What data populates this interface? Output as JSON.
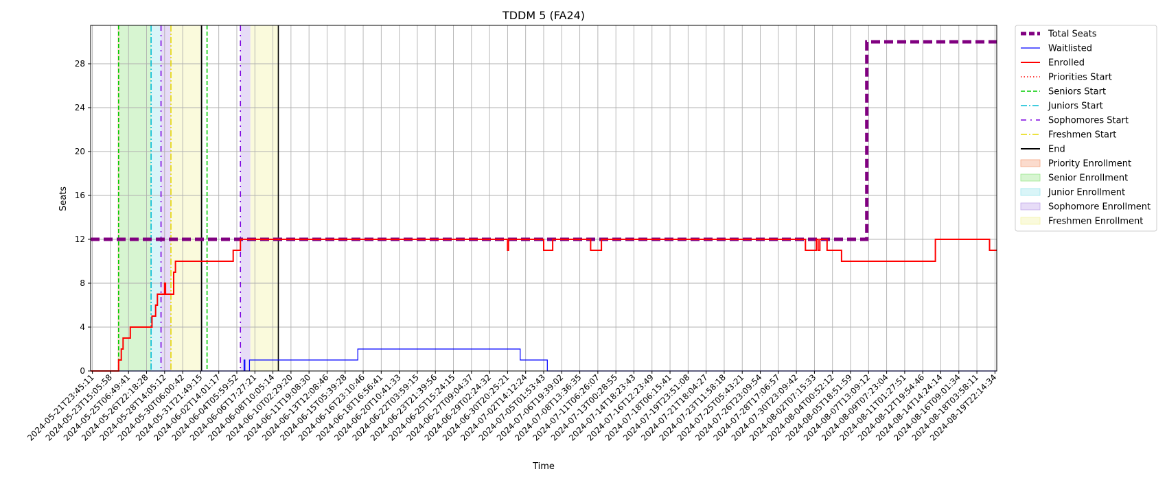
{
  "chart_data": {
    "type": "line",
    "title": "TDDM 5 (FA24)",
    "xlabel": "Time",
    "ylabel": "Seats",
    "ylim": [
      0,
      31.5
    ],
    "yticks": [
      0,
      4,
      8,
      12,
      16,
      20,
      24,
      28
    ],
    "grid": true,
    "legend_position": "outside-right-top",
    "x_tick_labels": [
      "2024-05-21T23:45:11",
      "2024-05-23T15:05:58",
      "2024-05-25T06:49:41",
      "2024-05-26T22:18:28",
      "2024-05-28T14:05:12",
      "2024-05-30T06:00:42",
      "2024-05-31T21:49:15",
      "2024-06-02T14:01:17",
      "2024-06-04T05:59:52",
      "2024-06-06T17:27:21",
      "2024-06-08T10:05:14",
      "2024-06-10T02:29:20",
      "2024-06-11T19:08:30",
      "2024-06-13T12:08:46",
      "2024-06-15T05:39:28",
      "2024-06-16T23:10:46",
      "2024-06-18T16:56:41",
      "2024-06-20T10:41:33",
      "2024-06-22T03:59:15",
      "2024-06-23T21:39:56",
      "2024-06-25T15:24:15",
      "2024-06-27T09:04:37",
      "2024-06-29T02:24:32",
      "2024-06-30T20:25:21",
      "2024-07-02T14:12:24",
      "2024-07-05T01:53:43",
      "2024-07-06T19:39:02",
      "2024-07-08T13:36:35",
      "2024-07-11T06:26:07",
      "2024-07-13T00:28:55",
      "2024-07-14T18:23:43",
      "2024-07-16T12:23:49",
      "2024-07-18T06:15:41",
      "2024-07-19T23:51:08",
      "2024-07-21T18:04:27",
      "2024-07-23T11:58:18",
      "2024-07-25T05:43:21",
      "2024-07-26T23:09:54",
      "2024-07-28T17:06:57",
      "2024-07-30T23:09:42",
      "2024-08-02T07:15:33",
      "2024-08-04T00:52:12",
      "2024-08-05T18:51:59",
      "2024-08-07T13:09:12",
      "2024-08-09T07:23:04",
      "2024-08-11T01:27:51",
      "2024-08-12T19:54:46",
      "2024-08-14T14:24:14",
      "2024-08-16T09:01:34",
      "2024-08-18T03:58:11",
      "2024-08-19T22:14:34"
    ],
    "x_domain": [
      -0.1,
      50.1
    ],
    "series": [
      {
        "name": "Total Seats",
        "color": "#800080",
        "style": "dashed-thick",
        "points": [
          [
            -0.1,
            12
          ],
          [
            42.9,
            12
          ],
          [
            42.9,
            30
          ],
          [
            50.1,
            30
          ]
        ]
      },
      {
        "name": "Waitlisted",
        "color": "#0000ff",
        "style": "solid-thin",
        "points": [
          [
            -0.1,
            0
          ],
          [
            8.4,
            0
          ],
          [
            8.4,
            1
          ],
          [
            8.45,
            1
          ],
          [
            8.45,
            0
          ],
          [
            8.7,
            0
          ],
          [
            8.7,
            1
          ],
          [
            14.7,
            1
          ],
          [
            14.7,
            2
          ],
          [
            23.7,
            2
          ],
          [
            23.7,
            1
          ],
          [
            25.2,
            1
          ],
          [
            25.2,
            0
          ],
          [
            50.1,
            0
          ]
        ]
      },
      {
        "name": "Enrolled",
        "color": "#ff0000",
        "style": "solid",
        "points": [
          [
            -0.1,
            0
          ],
          [
            1.45,
            0
          ],
          [
            1.45,
            1
          ],
          [
            1.6,
            1
          ],
          [
            1.6,
            2
          ],
          [
            1.7,
            2
          ],
          [
            1.7,
            3
          ],
          [
            2.1,
            3
          ],
          [
            2.1,
            4
          ],
          [
            3.3,
            4
          ],
          [
            3.3,
            5
          ],
          [
            3.5,
            5
          ],
          [
            3.5,
            6
          ],
          [
            3.6,
            6
          ],
          [
            3.6,
            7
          ],
          [
            4.0,
            7
          ],
          [
            4.0,
            8
          ],
          [
            4.05,
            8
          ],
          [
            4.05,
            7
          ],
          [
            4.5,
            7
          ],
          [
            4.5,
            9
          ],
          [
            4.6,
            9
          ],
          [
            4.6,
            10
          ],
          [
            7.8,
            10
          ],
          [
            7.8,
            11
          ],
          [
            8.2,
            11
          ],
          [
            8.2,
            12
          ],
          [
            23.0,
            12
          ],
          [
            23.0,
            11
          ],
          [
            23.05,
            11
          ],
          [
            23.05,
            12
          ],
          [
            25.0,
            12
          ],
          [
            25.0,
            11
          ],
          [
            25.5,
            11
          ],
          [
            25.5,
            12
          ],
          [
            27.6,
            12
          ],
          [
            27.6,
            11
          ],
          [
            28.2,
            11
          ],
          [
            28.2,
            12
          ],
          [
            39.5,
            12
          ],
          [
            39.5,
            11
          ],
          [
            40.1,
            11
          ],
          [
            40.1,
            12
          ],
          [
            40.2,
            12
          ],
          [
            40.2,
            11
          ],
          [
            40.3,
            11
          ],
          [
            40.3,
            12
          ],
          [
            40.7,
            12
          ],
          [
            40.7,
            11
          ],
          [
            41.5,
            11
          ],
          [
            41.5,
            10
          ],
          [
            46.7,
            10
          ],
          [
            46.7,
            12
          ],
          [
            49.7,
            12
          ],
          [
            49.7,
            11
          ],
          [
            50.1,
            11
          ]
        ]
      }
    ],
    "event_lines": [
      {
        "name": "Priorities Start",
        "color": "#ff0000",
        "style": "dotted",
        "x": [
          1.45
        ]
      },
      {
        "name": "Seniors Start",
        "color": "#00cc00",
        "style": "dashed",
        "x": [
          1.45,
          6.35
        ]
      },
      {
        "name": "Juniors Start",
        "color": "#00bcd4",
        "style": "dashdot",
        "x": [
          3.25
        ]
      },
      {
        "name": "Sophomores Start",
        "color": "#7b00e0",
        "style": "dashdotted-loose",
        "x": [
          3.8,
          8.2
        ]
      },
      {
        "name": "Freshmen Start",
        "color": "#e6d800",
        "style": "dashdot",
        "x": [
          4.35
        ]
      },
      {
        "name": "End",
        "color": "#000000",
        "style": "solid",
        "x": [
          6.05,
          10.3
        ]
      }
    ],
    "shaded_regions": [
      {
        "name": "Priority Enrollment",
        "color": "#f4a582",
        "spans": [
          [
            1.4,
            1.5
          ]
        ]
      },
      {
        "name": "Senior Enrollment",
        "color": "#9be68c",
        "spans": [
          [
            1.5,
            3.25
          ]
        ]
      },
      {
        "name": "Junior Enrollment",
        "color": "#9fe6ee",
        "spans": [
          [
            3.25,
            3.8
          ]
        ]
      },
      {
        "name": "Sophomore Enrollment",
        "color": "#c3a8ea",
        "spans": [
          [
            3.8,
            4.35
          ],
          [
            8.2,
            8.75
          ]
        ]
      },
      {
        "name": "Freshmen Enrollment",
        "color": "#f3f3a8",
        "spans": [
          [
            4.35,
            6.05
          ],
          [
            8.75,
            10.3
          ]
        ]
      }
    ],
    "legend": [
      {
        "label": "Total Seats",
        "kind": "line",
        "color": "#800080",
        "style": "dashed-thick"
      },
      {
        "label": "Waitlisted",
        "kind": "line",
        "color": "#0000ff",
        "style": "solid-thin"
      },
      {
        "label": "Enrolled",
        "kind": "line",
        "color": "#ff0000",
        "style": "solid"
      },
      {
        "label": "Priorities Start",
        "kind": "line",
        "color": "#ff0000",
        "style": "dotted"
      },
      {
        "label": "Seniors Start",
        "kind": "line",
        "color": "#00cc00",
        "style": "dashed"
      },
      {
        "label": "Juniors Start",
        "kind": "line",
        "color": "#00bcd4",
        "style": "dashdot"
      },
      {
        "label": "Sophomores Start",
        "kind": "line",
        "color": "#7b00e0",
        "style": "dashdotted-loose"
      },
      {
        "label": "Freshmen Start",
        "kind": "line",
        "color": "#e6d800",
        "style": "dashdot"
      },
      {
        "label": "End",
        "kind": "line",
        "color": "#000000",
        "style": "solid"
      },
      {
        "label": "Priority Enrollment",
        "kind": "patch",
        "color": "#f4a582"
      },
      {
        "label": "Senior Enrollment",
        "kind": "patch",
        "color": "#9be68c"
      },
      {
        "label": "Junior Enrollment",
        "kind": "patch",
        "color": "#9fe6ee"
      },
      {
        "label": "Sophomore Enrollment",
        "kind": "patch",
        "color": "#c3a8ea"
      },
      {
        "label": "Freshmen Enrollment",
        "kind": "patch",
        "color": "#f3f3a8"
      }
    ]
  }
}
